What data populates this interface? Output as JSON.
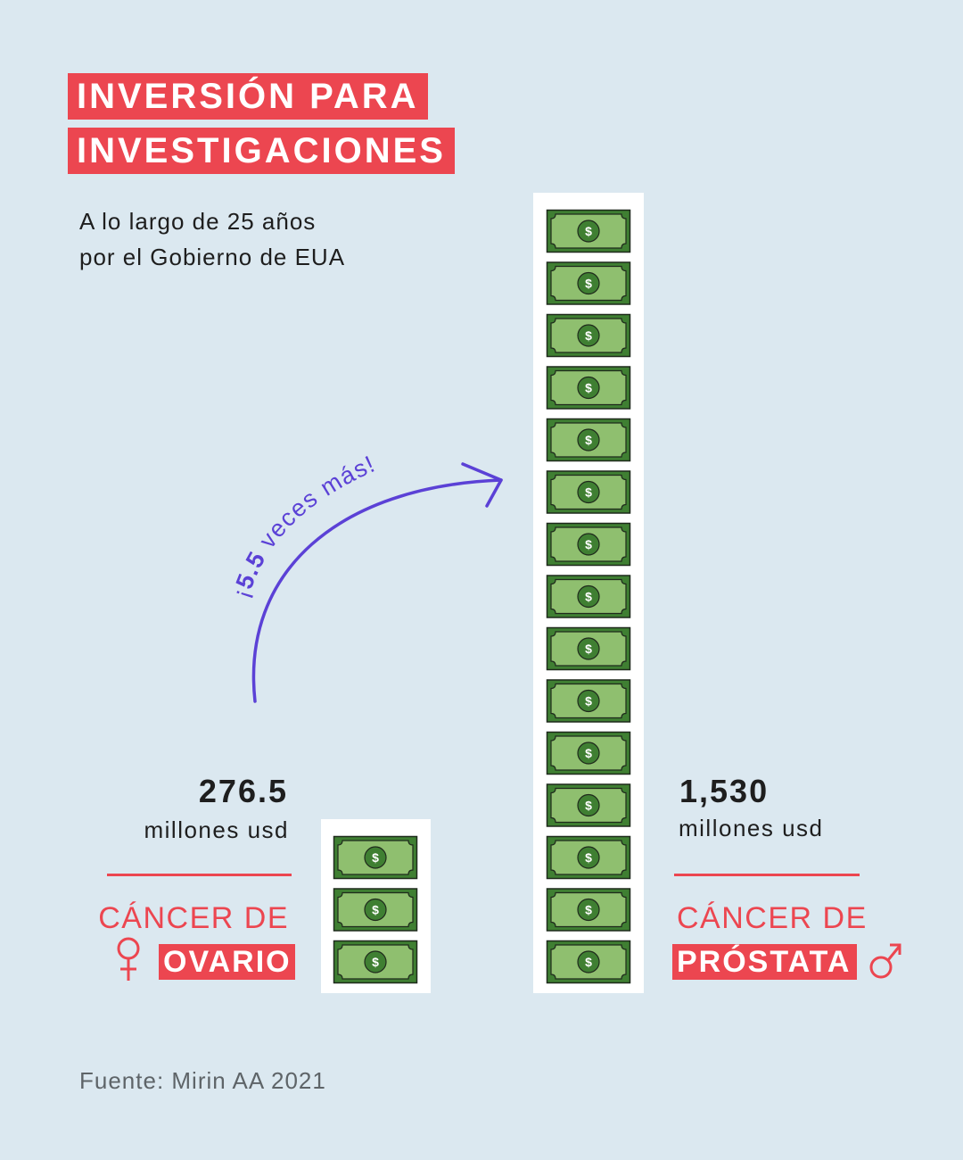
{
  "title": [
    "INVERSIÓN PARA",
    "INVESTIGACIONES"
  ],
  "subtitle": [
    "A lo largo de 25 años",
    "por el Gobierno de EUA"
  ],
  "annotation": {
    "prefix": "¡",
    "bold": "5.5",
    "rest": " veces más!"
  },
  "source": "Fuente: Mirin AA 2021",
  "bill_symbol": "$",
  "colors": {
    "accent": "#ec4650",
    "arrow": "#5b41d6",
    "bill_dark": "#3f7f32",
    "bill_light": "#8fbf6f",
    "background": "#dbe8f0"
  },
  "chart_data": {
    "type": "bar",
    "title": "INVERSIÓN PARA INVESTIGACIONES",
    "subtitle": "A lo largo de 25 años por el Gobierno de EUA",
    "unit": "millones usd",
    "categories": [
      "CÁNCER DE OVARIO",
      "CÁNCER DE PRÓSTATA"
    ],
    "values": [
      276.5,
      1530
    ],
    "value_labels": [
      "276.5",
      "1,530"
    ],
    "unit_labels": [
      "millones usd",
      "millones usd"
    ],
    "category_top": [
      "CÁNCER DE",
      "CÁNCER DE"
    ],
    "category_box": [
      "OVARIO",
      "PRÓSTATA"
    ],
    "icons": [
      "female-symbol-icon",
      "male-symbol-icon"
    ],
    "bills_shown": [
      3,
      15
    ],
    "ratio_annotation": "¡5.5 veces más!"
  }
}
